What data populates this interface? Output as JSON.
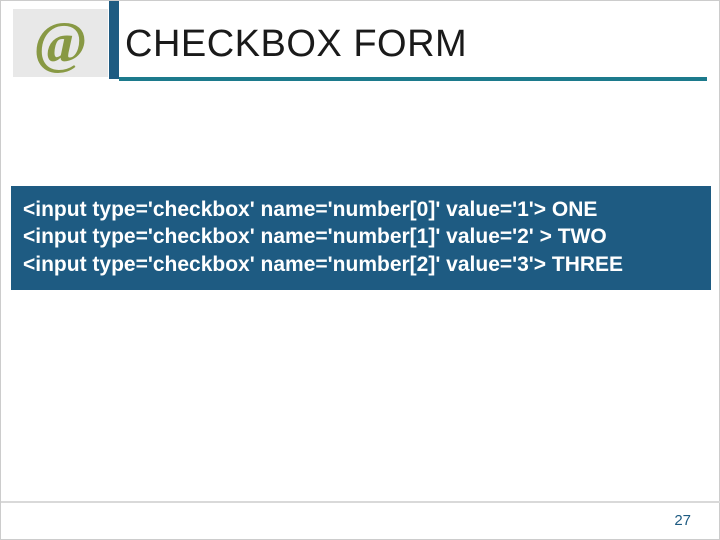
{
  "header": {
    "logo_symbol": "@",
    "title": "CHECKBOX FORM",
    "stripe_color": "#1e5b82",
    "underline_color": "#1c7a8c"
  },
  "code": {
    "box_bg": "#1e5b82",
    "text_color": "#ffffff",
    "lines": [
      "<input type='checkbox' name='number[0]' value='1'> ONE",
      "<input type='checkbox' name='number[1]' value='2' > TWO",
      "<input type='checkbox' name='number[2]' value='3'> THREE"
    ]
  },
  "footer": {
    "page_number": "27",
    "line_color": "#d9d9d9"
  }
}
